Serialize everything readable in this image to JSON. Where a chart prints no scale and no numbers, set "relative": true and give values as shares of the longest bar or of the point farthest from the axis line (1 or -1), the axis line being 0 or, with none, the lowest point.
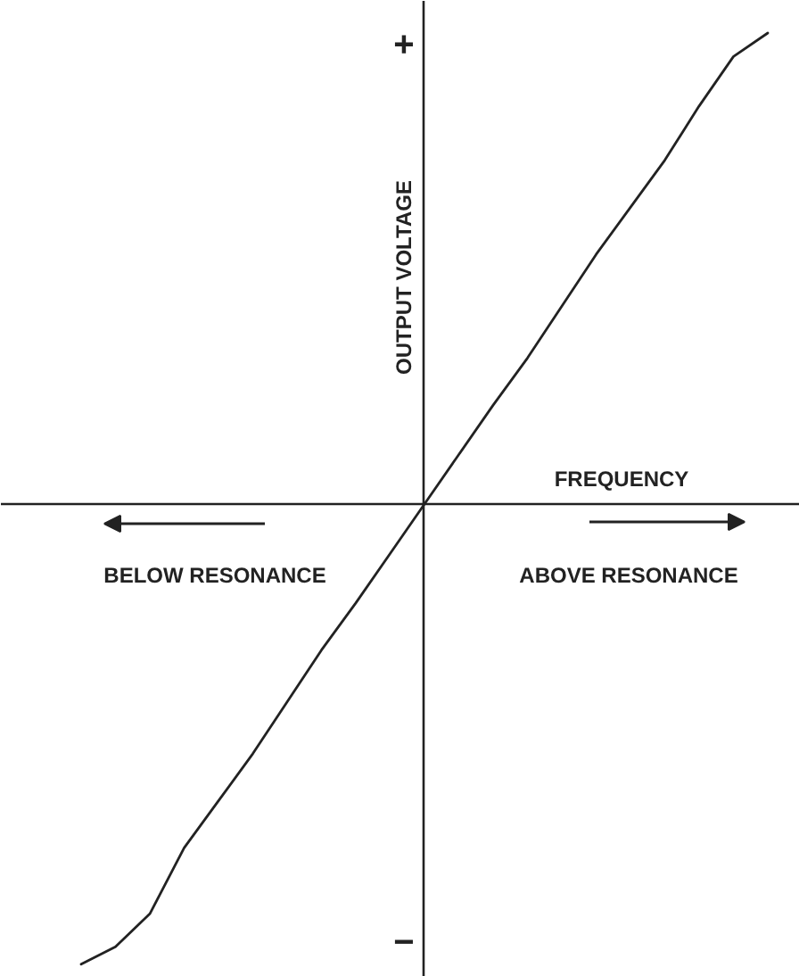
{
  "chart_data": {
    "type": "line",
    "relative": true,
    "xlabel": "FREQUENCY",
    "ylabel": "OUTPUT VOLTAGE",
    "annotations": [
      "+",
      "−",
      "BELOW RESONANCE",
      "ABOVE RESONANCE"
    ],
    "categories": [
      null,
      null,
      null,
      null,
      null,
      null,
      null,
      null,
      null,
      null,
      null,
      null,
      null,
      null,
      null,
      null,
      null,
      null,
      null,
      null,
      null
    ],
    "series": [
      {
        "color": "#222222",
        "values": [
          -0.977,
          -0.94,
          -0.87,
          -0.73,
          -0.63,
          -0.53,
          -0.42,
          -0.31,
          -0.21,
          -0.105,
          0,
          0.105,
          0.21,
          0.31,
          0.42,
          0.53,
          0.63,
          0.73,
          0.845,
          0.95,
          1.0
        ]
      }
    ]
  }
}
